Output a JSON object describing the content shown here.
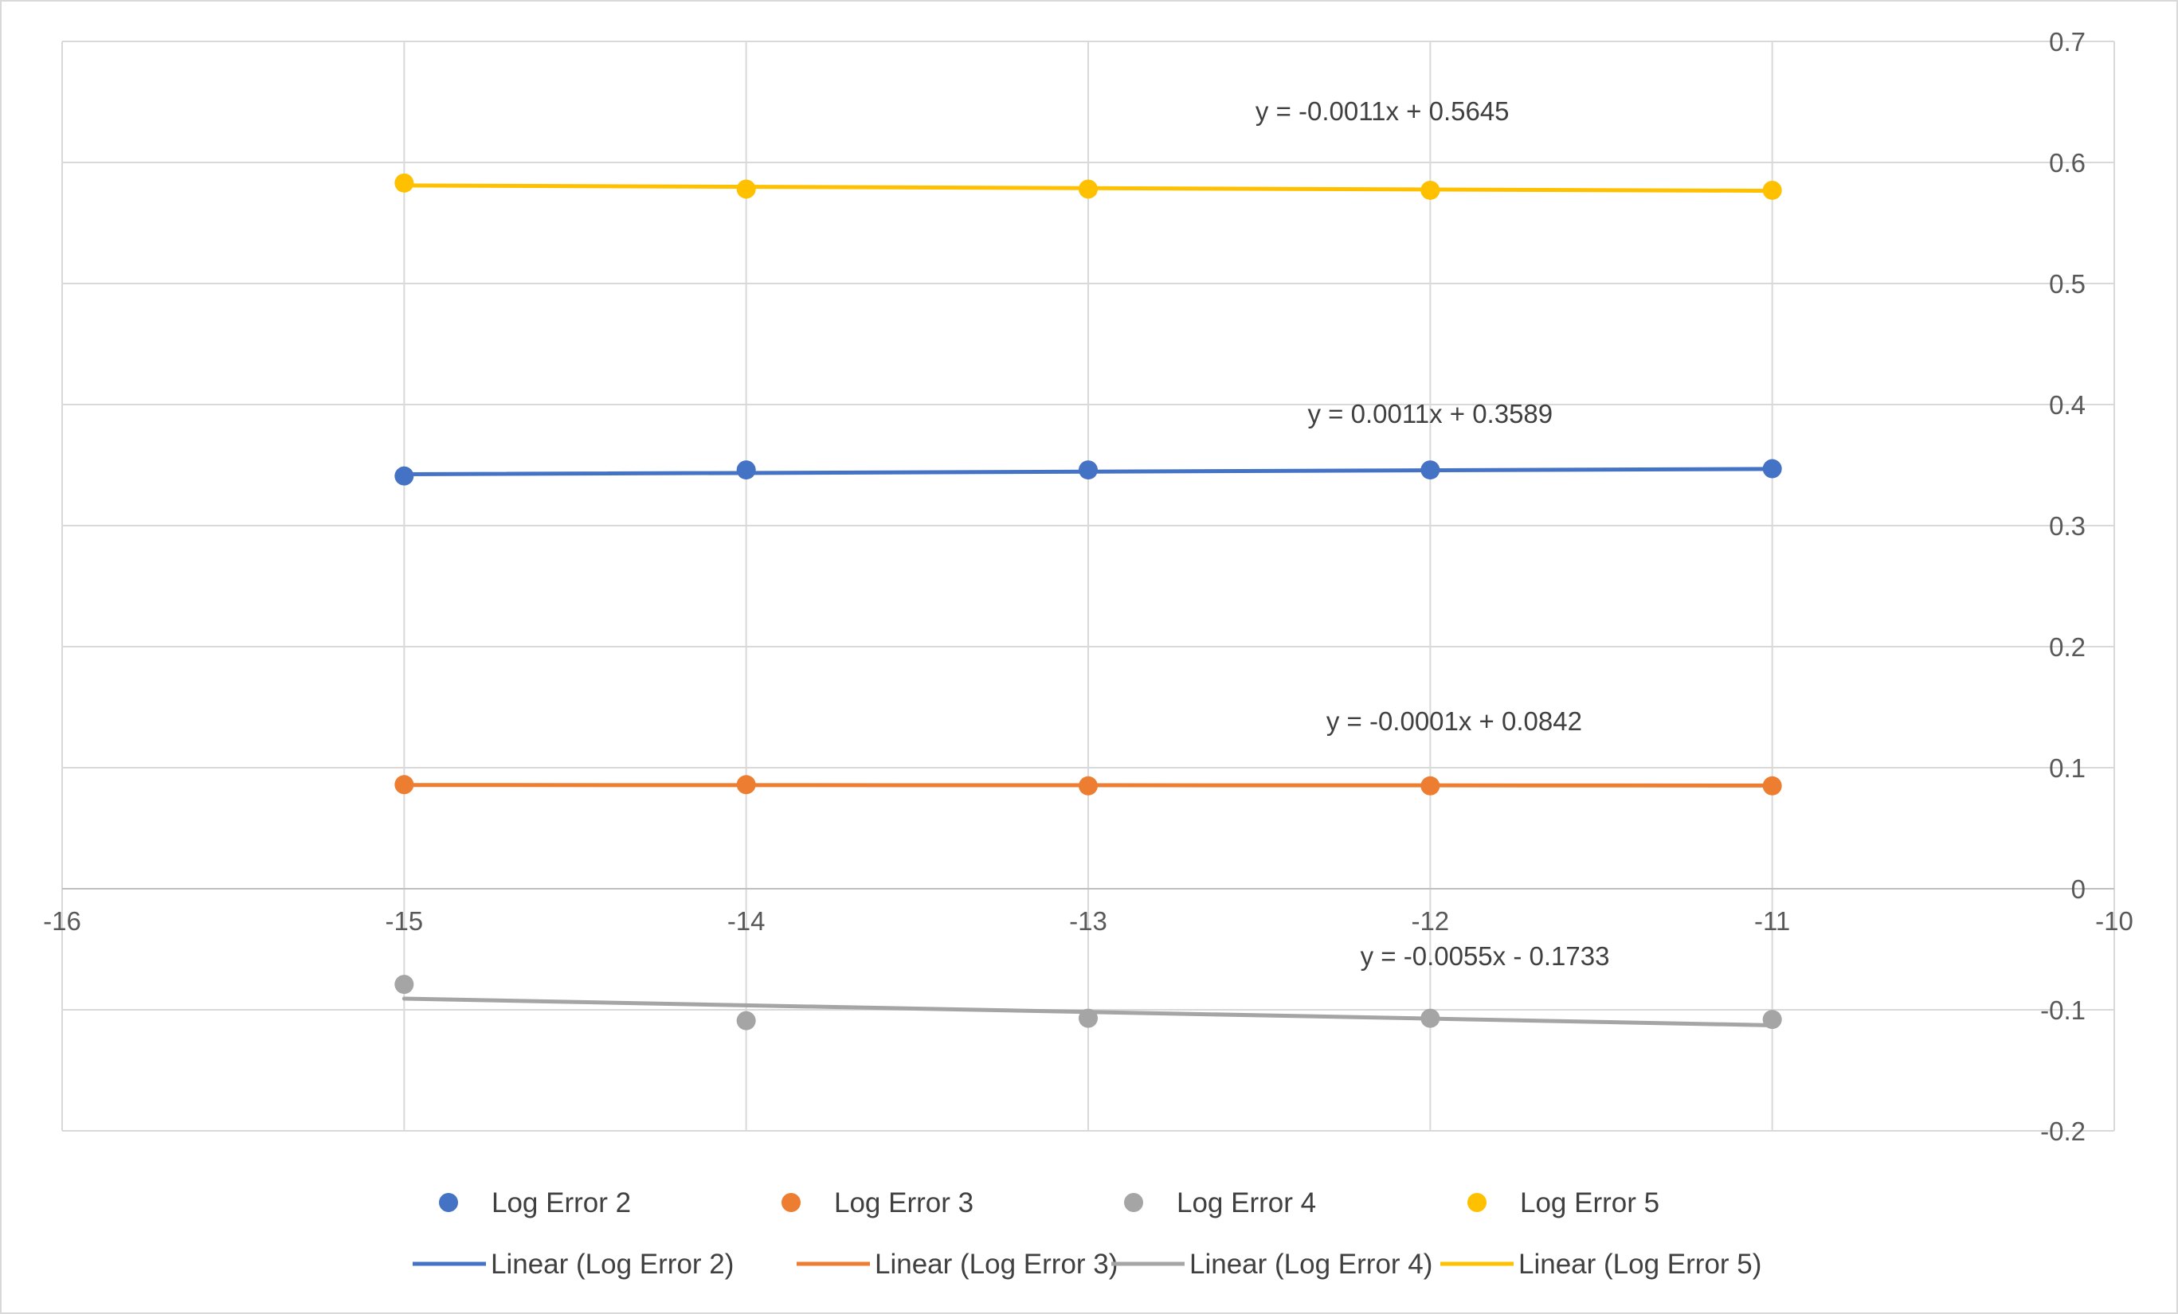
{
  "chart_data": {
    "type": "scatter",
    "title": "",
    "xlabel": "",
    "ylabel": "",
    "xlim": [
      -16,
      -10
    ],
    "ylim": [
      -0.2,
      0.7
    ],
    "x_ticks": [
      -16,
      -15,
      -14,
      -13,
      -12,
      -11,
      -10
    ],
    "y_ticks": [
      0.7,
      0.6,
      0.5,
      0.4,
      0.3,
      0.2,
      0.1,
      0,
      -0.1,
      -0.2
    ],
    "grid": true,
    "y_axis_side": "right",
    "legend_position": "bottom",
    "series": [
      {
        "name": "Log Error 2",
        "color": "#4472C4",
        "x": [
          -15,
          -14,
          -13,
          -12,
          -11
        ],
        "y": [
          0.341,
          0.346,
          0.346,
          0.346,
          0.347
        ],
        "trend_name": "Linear (Log Error 2)",
        "trend": {
          "slope": 0.0011,
          "intercept": 0.3589
        },
        "equation": "y = 0.0011x + 0.3589",
        "equation_anchor": [
          -12,
          0.385
        ]
      },
      {
        "name": "Log Error 3",
        "color": "#ED7D31",
        "x": [
          -15,
          -14,
          -13,
          -12,
          -11
        ],
        "y": [
          0.086,
          0.086,
          0.085,
          0.085,
          0.085
        ],
        "trend_name": "Linear (Log Error 3)",
        "trend": {
          "slope": -0.0001,
          "intercept": 0.0842
        },
        "equation": "y = -0.0001x + 0.0842",
        "equation_anchor": [
          -11.93,
          0.131
        ]
      },
      {
        "name": "Log Error 4",
        "color": "#A5A5A5",
        "x": [
          -15,
          -14,
          -13,
          -12,
          -11
        ],
        "y": [
          -0.079,
          -0.109,
          -0.107,
          -0.107,
          -0.108
        ],
        "trend_name": "Linear (Log Error 4)",
        "trend": {
          "slope": -0.0055,
          "intercept": -0.1733
        },
        "equation": "y = -0.0055x - 0.1733",
        "equation_anchor": [
          -11.84,
          -0.063
        ]
      },
      {
        "name": "Log Error 5",
        "color": "#FFC000",
        "x": [
          -15,
          -14,
          -13,
          -12,
          -11
        ],
        "y": [
          0.583,
          0.578,
          0.578,
          0.577,
          0.577
        ],
        "trend_name": "Linear (Log Error 5)",
        "trend": {
          "slope": -0.0011,
          "intercept": 0.5645
        },
        "equation": "y = -0.0011x + 0.5645",
        "equation_anchor": [
          -12.14,
          0.635
        ]
      }
    ]
  }
}
